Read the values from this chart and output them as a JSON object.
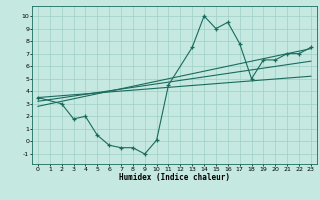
{
  "xlabel": "Humidex (Indice chaleur)",
  "bg_color": "#c5e8e0",
  "grid_color": "#9ecfc5",
  "line_color": "#1a6b5e",
  "xlim": [
    -0.5,
    23.5
  ],
  "ylim": [
    -1.8,
    10.8
  ],
  "xticks": [
    0,
    1,
    2,
    3,
    4,
    5,
    6,
    7,
    8,
    9,
    10,
    11,
    12,
    13,
    14,
    15,
    16,
    17,
    18,
    19,
    20,
    21,
    22,
    23
  ],
  "yticks": [
    -1,
    0,
    1,
    2,
    3,
    4,
    5,
    6,
    7,
    8,
    9,
    10
  ],
  "line1_x": [
    0,
    2,
    3,
    4,
    5,
    6,
    7,
    8,
    9,
    10,
    11,
    13,
    14,
    15,
    16,
    17,
    18,
    19,
    20,
    21,
    22,
    23
  ],
  "line1_y": [
    3.5,
    3.0,
    1.8,
    2.0,
    0.5,
    -0.3,
    -0.5,
    -0.5,
    -1.0,
    0.1,
    4.5,
    7.5,
    10.0,
    9.0,
    9.5,
    7.8,
    5.0,
    6.5,
    6.5,
    7.0,
    7.0,
    7.5
  ],
  "line2_x": [
    0,
    23
  ],
  "line2_y": [
    3.5,
    5.2
  ],
  "line3_x": [
    0,
    23
  ],
  "line3_y": [
    3.2,
    6.4
  ],
  "line4_x": [
    0,
    23
  ],
  "line4_y": [
    2.8,
    7.4
  ]
}
